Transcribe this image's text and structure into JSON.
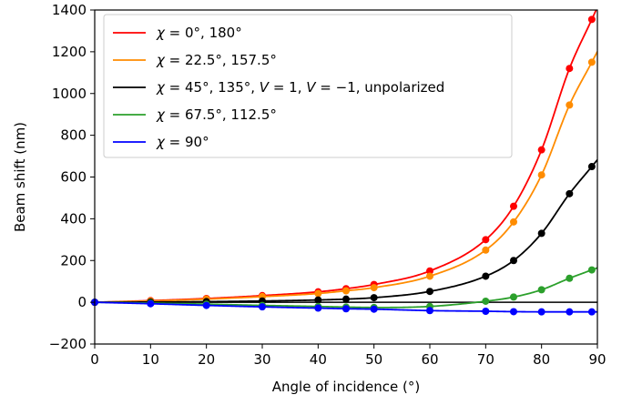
{
  "chart_data": {
    "type": "line",
    "xlabel": "Angle of incidence (°)",
    "ylabel": "Beam shift (nm)",
    "xlim": [
      0,
      90
    ],
    "ylim": [
      -200,
      1400
    ],
    "xticks": [
      0,
      10,
      20,
      30,
      40,
      50,
      60,
      70,
      80,
      90
    ],
    "yticks": [
      -200,
      0,
      200,
      400,
      600,
      800,
      1000,
      1200,
      1400
    ],
    "grid": false,
    "legend_position": "top-left",
    "series": [
      {
        "name": "χ = 0°, 180°",
        "color": "#ff0000",
        "x": [
          0,
          10,
          20,
          30,
          40,
          45,
          50,
          60,
          70,
          75,
          80,
          85,
          89
        ],
        "y": [
          0,
          8,
          18,
          32,
          50,
          65,
          85,
          150,
          300,
          460,
          730,
          1120,
          1355
        ]
      },
      {
        "name": "χ = 22.5°, 157.5°",
        "color": "#ff8c00",
        "x": [
          0,
          10,
          20,
          30,
          40,
          45,
          50,
          60,
          70,
          75,
          80,
          85,
          89
        ],
        "y": [
          0,
          6,
          15,
          27,
          42,
          55,
          70,
          125,
          250,
          385,
          610,
          945,
          1150
        ]
      },
      {
        "name": "χ = 45°, 135°, V = 1, V = −1, unpolarized",
        "color": "#000000",
        "x": [
          0,
          10,
          20,
          30,
          40,
          45,
          50,
          60,
          70,
          75,
          80,
          85,
          89
        ],
        "y": [
          0,
          1,
          3,
          6,
          11,
          15,
          22,
          52,
          125,
          200,
          330,
          520,
          650
        ]
      },
      {
        "name": "χ = 67.5°, 112.5°",
        "color": "#2ca02c",
        "x": [
          0,
          10,
          20,
          30,
          40,
          45,
          50,
          60,
          70,
          75,
          80,
          85,
          89
        ],
        "y": [
          0,
          -4,
          -9,
          -15,
          -20,
          -23,
          -25,
          -20,
          5,
          25,
          60,
          115,
          155
        ]
      },
      {
        "name": "χ = 90°",
        "color": "#0000ff",
        "x": [
          0,
          10,
          20,
          30,
          40,
          45,
          50,
          60,
          70,
          75,
          80,
          85,
          89
        ],
        "y": [
          0,
          -7,
          -15,
          -22,
          -28,
          -31,
          -33,
          -40,
          -43,
          -45,
          -46,
          -46,
          -46
        ]
      }
    ],
    "legend_labels": [
      {
        "pre": "χ",
        "post": " = 0°, 180°"
      },
      {
        "pre": "χ",
        "post": " = 22.5°, 157.5°"
      },
      {
        "pre": "χ",
        "post": " = 45°, 135°, ",
        "v1": "V",
        "mid": " = 1, ",
        "v2": "V",
        "tail": " = −1, unpolarized"
      },
      {
        "pre": "χ",
        "post": " = 67.5°, 112.5°"
      },
      {
        "pre": "χ",
        "post": " = 90°"
      }
    ]
  }
}
